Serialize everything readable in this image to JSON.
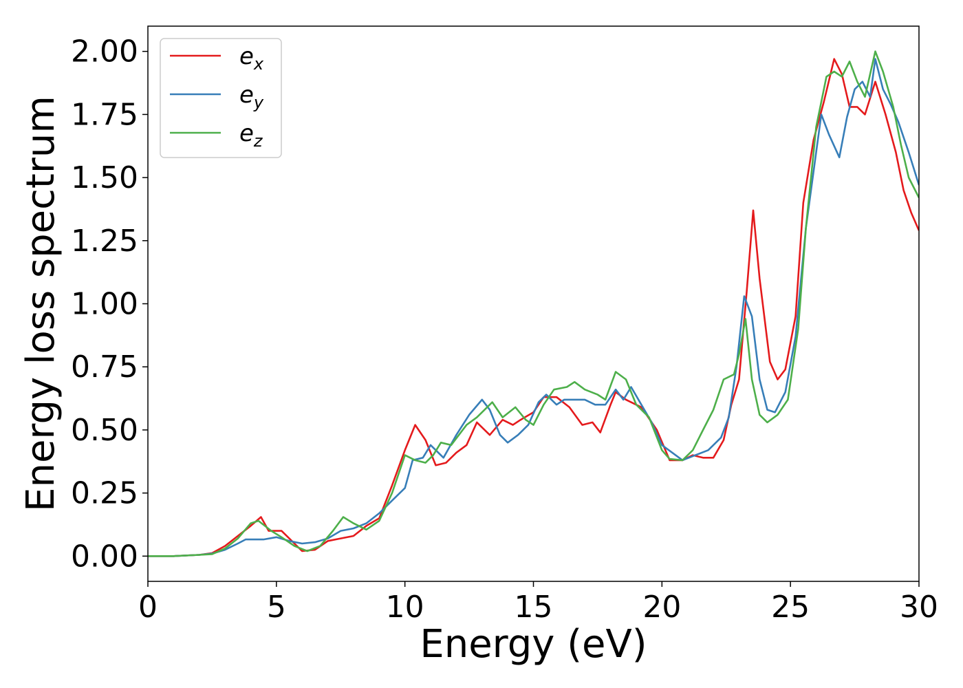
{
  "chart_data": {
    "type": "line",
    "xlabel": "Energy (eV)",
    "ylabel": "Energy loss spectrum",
    "xlim": [
      0,
      30
    ],
    "ylim": [
      -0.1,
      2.1
    ],
    "xticks": [
      "0",
      "5",
      "10",
      "15",
      "20",
      "25",
      "30"
    ],
    "yticks": [
      "0.00",
      "0.25",
      "0.50",
      "0.75",
      "1.00",
      "1.25",
      "1.50",
      "1.75",
      "2.00"
    ],
    "grid": false,
    "legend_position": "top-left",
    "series": [
      {
        "name": "e_x",
        "name_base": "e",
        "name_sub": "x",
        "color": "#e41a1c",
        "points": [
          [
            0,
            0
          ],
          [
            1,
            0.0
          ],
          [
            2,
            0.005
          ],
          [
            2.5,
            0.012
          ],
          [
            3,
            0.04
          ],
          [
            3.5,
            0.08
          ],
          [
            4,
            0.12
          ],
          [
            4.4,
            0.155
          ],
          [
            4.7,
            0.1
          ],
          [
            5.2,
            0.1
          ],
          [
            5.6,
            0.06
          ],
          [
            6,
            0.02
          ],
          [
            6.5,
            0.025
          ],
          [
            7,
            0.06
          ],
          [
            7.5,
            0.07
          ],
          [
            8,
            0.08
          ],
          [
            8.5,
            0.12
          ],
          [
            9,
            0.15
          ],
          [
            9.5,
            0.28
          ],
          [
            10,
            0.42
          ],
          [
            10.4,
            0.52
          ],
          [
            10.8,
            0.46
          ],
          [
            11.2,
            0.36
          ],
          [
            11.6,
            0.37
          ],
          [
            12,
            0.41
          ],
          [
            12.4,
            0.44
          ],
          [
            12.8,
            0.53
          ],
          [
            13.3,
            0.48
          ],
          [
            13.8,
            0.54
          ],
          [
            14.2,
            0.52
          ],
          [
            14.5,
            0.54
          ],
          [
            15,
            0.57
          ],
          [
            15.4,
            0.63
          ],
          [
            15.9,
            0.63
          ],
          [
            16.4,
            0.59
          ],
          [
            16.9,
            0.52
          ],
          [
            17.3,
            0.53
          ],
          [
            17.6,
            0.49
          ],
          [
            18,
            0.6
          ],
          [
            18.2,
            0.65
          ],
          [
            18.6,
            0.62
          ],
          [
            19.2,
            0.59
          ],
          [
            19.8,
            0.5
          ],
          [
            20.3,
            0.38
          ],
          [
            20.8,
            0.38
          ],
          [
            21.2,
            0.4
          ],
          [
            21.6,
            0.39
          ],
          [
            22,
            0.39
          ],
          [
            22.4,
            0.46
          ],
          [
            22.7,
            0.6
          ],
          [
            23,
            0.7
          ],
          [
            23.3,
            1.05
          ],
          [
            23.55,
            1.37
          ],
          [
            23.8,
            1.1
          ],
          [
            24.2,
            0.77
          ],
          [
            24.5,
            0.7
          ],
          [
            24.8,
            0.74
          ],
          [
            25.2,
            0.95
          ],
          [
            25.5,
            1.4
          ],
          [
            25.9,
            1.65
          ],
          [
            26.3,
            1.8
          ],
          [
            26.7,
            1.97
          ],
          [
            27,
            1.91
          ],
          [
            27.3,
            1.78
          ],
          [
            27.6,
            1.78
          ],
          [
            27.9,
            1.75
          ],
          [
            28.3,
            1.88
          ],
          [
            28.7,
            1.75
          ],
          [
            29.1,
            1.6
          ],
          [
            29.4,
            1.45
          ],
          [
            29.7,
            1.36
          ],
          [
            30,
            1.29
          ]
        ]
      },
      {
        "name": "e_y",
        "name_base": "e",
        "name_sub": "y",
        "color": "#377eb8",
        "points": [
          [
            0,
            0
          ],
          [
            1,
            0.0
          ],
          [
            2,
            0.005
          ],
          [
            2.5,
            0.01
          ],
          [
            3,
            0.025
          ],
          [
            3.5,
            0.05
          ],
          [
            3.8,
            0.066
          ],
          [
            4.5,
            0.066
          ],
          [
            5,
            0.075
          ],
          [
            5.5,
            0.06
          ],
          [
            6,
            0.05
          ],
          [
            6.5,
            0.055
          ],
          [
            7,
            0.07
          ],
          [
            7.5,
            0.1
          ],
          [
            8,
            0.11
          ],
          [
            8.5,
            0.13
          ],
          [
            9,
            0.17
          ],
          [
            9.5,
            0.22
          ],
          [
            10,
            0.27
          ],
          [
            10.3,
            0.38
          ],
          [
            10.7,
            0.39
          ],
          [
            11,
            0.44
          ],
          [
            11.5,
            0.39
          ],
          [
            12,
            0.48
          ],
          [
            12.5,
            0.56
          ],
          [
            13,
            0.62
          ],
          [
            13.3,
            0.58
          ],
          [
            13.7,
            0.48
          ],
          [
            14,
            0.45
          ],
          [
            14.4,
            0.48
          ],
          [
            14.8,
            0.52
          ],
          [
            15.2,
            0.61
          ],
          [
            15.5,
            0.64
          ],
          [
            15.9,
            0.6
          ],
          [
            16.2,
            0.62
          ],
          [
            17,
            0.62
          ],
          [
            17.4,
            0.6
          ],
          [
            17.8,
            0.6
          ],
          [
            18.2,
            0.66
          ],
          [
            18.5,
            0.62
          ],
          [
            18.8,
            0.67
          ],
          [
            19.2,
            0.6
          ],
          [
            19.6,
            0.53
          ],
          [
            20,
            0.44
          ],
          [
            20.4,
            0.41
          ],
          [
            20.8,
            0.38
          ],
          [
            21.3,
            0.4
          ],
          [
            21.8,
            0.42
          ],
          [
            22.3,
            0.47
          ],
          [
            22.6,
            0.55
          ],
          [
            22.9,
            0.75
          ],
          [
            23.2,
            1.03
          ],
          [
            23.5,
            0.95
          ],
          [
            23.8,
            0.7
          ],
          [
            24.1,
            0.58
          ],
          [
            24.4,
            0.57
          ],
          [
            24.8,
            0.65
          ],
          [
            25.2,
            0.87
          ],
          [
            25.6,
            1.3
          ],
          [
            26,
            1.6
          ],
          [
            26.2,
            1.75
          ],
          [
            26.5,
            1.67
          ],
          [
            26.9,
            1.58
          ],
          [
            27.2,
            1.74
          ],
          [
            27.5,
            1.85
          ],
          [
            27.8,
            1.88
          ],
          [
            28.1,
            1.82
          ],
          [
            28.3,
            1.97
          ],
          [
            28.6,
            1.85
          ],
          [
            28.9,
            1.79
          ],
          [
            29.2,
            1.72
          ],
          [
            29.6,
            1.6
          ],
          [
            30,
            1.47
          ]
        ]
      },
      {
        "name": "e_z",
        "name_base": "e",
        "name_sub": "z",
        "color": "#4daf4a",
        "points": [
          [
            0,
            0
          ],
          [
            1,
            0.0
          ],
          [
            2,
            0.005
          ],
          [
            2.5,
            0.008
          ],
          [
            3,
            0.03
          ],
          [
            3.5,
            0.07
          ],
          [
            4,
            0.13
          ],
          [
            4.3,
            0.14
          ],
          [
            4.8,
            0.1
          ],
          [
            5.2,
            0.075
          ],
          [
            5.7,
            0.04
          ],
          [
            6.2,
            0.02
          ],
          [
            6.7,
            0.04
          ],
          [
            7.2,
            0.1
          ],
          [
            7.6,
            0.155
          ],
          [
            8,
            0.13
          ],
          [
            8.5,
            0.105
          ],
          [
            9,
            0.14
          ],
          [
            9.5,
            0.25
          ],
          [
            10,
            0.4
          ],
          [
            10.4,
            0.38
          ],
          [
            10.8,
            0.37
          ],
          [
            11.1,
            0.4
          ],
          [
            11.4,
            0.45
          ],
          [
            11.8,
            0.44
          ],
          [
            12.4,
            0.52
          ],
          [
            12.8,
            0.55
          ],
          [
            13.4,
            0.61
          ],
          [
            13.8,
            0.55
          ],
          [
            14.3,
            0.59
          ],
          [
            14.7,
            0.54
          ],
          [
            15,
            0.52
          ],
          [
            15.4,
            0.6
          ],
          [
            15.8,
            0.66
          ],
          [
            16.3,
            0.67
          ],
          [
            16.6,
            0.69
          ],
          [
            17,
            0.66
          ],
          [
            17.5,
            0.64
          ],
          [
            17.8,
            0.62
          ],
          [
            18.2,
            0.73
          ],
          [
            18.6,
            0.7
          ],
          [
            19,
            0.6
          ],
          [
            19.5,
            0.55
          ],
          [
            20,
            0.42
          ],
          [
            20.3,
            0.385
          ],
          [
            20.8,
            0.38
          ],
          [
            21.2,
            0.42
          ],
          [
            21.6,
            0.5
          ],
          [
            22,
            0.58
          ],
          [
            22.4,
            0.7
          ],
          [
            22.8,
            0.72
          ],
          [
            23,
            0.8
          ],
          [
            23.25,
            0.94
          ],
          [
            23.5,
            0.7
          ],
          [
            23.8,
            0.56
          ],
          [
            24.1,
            0.53
          ],
          [
            24.5,
            0.56
          ],
          [
            24.9,
            0.62
          ],
          [
            25.3,
            0.9
          ],
          [
            25.6,
            1.3
          ],
          [
            26,
            1.7
          ],
          [
            26.4,
            1.9
          ],
          [
            26.7,
            1.92
          ],
          [
            27,
            1.9
          ],
          [
            27.3,
            1.96
          ],
          [
            27.6,
            1.88
          ],
          [
            27.9,
            1.82
          ],
          [
            28.3,
            2.0
          ],
          [
            28.6,
            1.92
          ],
          [
            29,
            1.78
          ],
          [
            29.3,
            1.63
          ],
          [
            29.6,
            1.5
          ],
          [
            30,
            1.42
          ]
        ]
      }
    ]
  }
}
